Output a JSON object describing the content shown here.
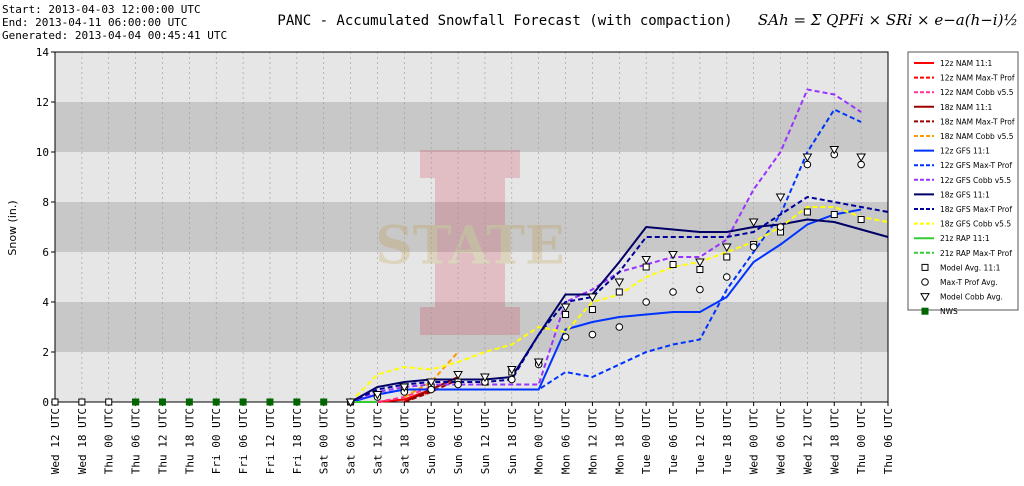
{
  "chart_data": {
    "type": "line",
    "title": "PANC - Accumulated Snowfall Forecast (with compaction)",
    "info": [
      "Start: 2013-04-03 12:00:00 UTC",
      "End: 2013-04-11 06:00:00 UTC",
      "Generated: 2013-04-04 00:45:41 UTC"
    ],
    "formula": "SAh = Σ QPFi × SRi × e−a(h−i)½",
    "watermark": "STATE",
    "y_label": "Snow (in.)",
    "ylim": [
      0,
      14
    ],
    "yticks": [
      0,
      2,
      4,
      6,
      8,
      10,
      12,
      14
    ],
    "grid": true,
    "bands": [
      [
        2,
        4
      ],
      [
        6,
        8
      ],
      [
        10,
        12
      ]
    ],
    "legend": "right",
    "categories": [
      "Wed 12 UTC",
      "Wed 18 UTC",
      "Thu 00 UTC",
      "Thu 06 UTC",
      "Thu 12 UTC",
      "Thu 18 UTC",
      "Fri 00 UTC",
      "Fri 06 UTC",
      "Fri 12 UTC",
      "Fri 18 UTC",
      "Sat 00 UTC",
      "Sat 06 UTC",
      "Sat 12 UTC",
      "Sat 18 UTC",
      "Sun 00 UTC",
      "Sun 06 UTC",
      "Sun 12 UTC",
      "Sun 18 UTC",
      "Mon 00 UTC",
      "Mon 06 UTC",
      "Mon 12 UTC",
      "Mon 18 UTC",
      "Tue 00 UTC",
      "Tue 06 UTC",
      "Tue 12 UTC",
      "Tue 18 UTC",
      "Wed 00 UTC",
      "Wed 06 UTC",
      "Wed 12 UTC",
      "Wed 18 UTC",
      "Thu 00 UTC",
      "Thu 06 UTC"
    ],
    "series": [
      {
        "name": "12z NAM 11:1",
        "color": "#ff0000",
        "style": "solid",
        "values": [
          null,
          null,
          null,
          null,
          null,
          null,
          null,
          null,
          null,
          null,
          null,
          null,
          0,
          0.1,
          0.5,
          null,
          null,
          null,
          null,
          null,
          null,
          null,
          null,
          null,
          null,
          null,
          null,
          null,
          null,
          null,
          null,
          null
        ]
      },
      {
        "name": "12z NAM Max-T Prof",
        "color": "#ff0000",
        "style": "dashed",
        "values": [
          null,
          null,
          null,
          null,
          null,
          null,
          null,
          null,
          null,
          null,
          null,
          null,
          0,
          0.1,
          0.4,
          null,
          null,
          null,
          null,
          null,
          null,
          null,
          null,
          null,
          null,
          null,
          null,
          null,
          null,
          null,
          null,
          null
        ]
      },
      {
        "name": "12z NAM Cobb v5.5",
        "color": "#ff3399",
        "style": "dashed",
        "values": [
          null,
          null,
          null,
          null,
          null,
          null,
          null,
          null,
          null,
          null,
          null,
          null,
          0,
          0.2,
          0.6,
          null,
          null,
          null,
          null,
          null,
          null,
          null,
          null,
          null,
          null,
          null,
          null,
          null,
          null,
          null,
          null,
          null
        ]
      },
      {
        "name": "18z NAM 11:1",
        "color": "#990000",
        "style": "solid",
        "values": [
          null,
          null,
          null,
          null,
          null,
          null,
          null,
          null,
          null,
          null,
          null,
          null,
          null,
          0,
          0.5,
          1.0,
          null,
          null,
          null,
          null,
          null,
          null,
          null,
          null,
          null,
          null,
          null,
          null,
          null,
          null,
          null,
          null
        ]
      },
      {
        "name": "18z NAM Max-T Prof",
        "color": "#990000",
        "style": "dashed",
        "values": [
          null,
          null,
          null,
          null,
          null,
          null,
          null,
          null,
          null,
          null,
          null,
          null,
          null,
          0,
          0.4,
          0.9,
          null,
          null,
          null,
          null,
          null,
          null,
          null,
          null,
          null,
          null,
          null,
          null,
          null,
          null,
          null,
          null
        ]
      },
      {
        "name": "18z NAM Cobb v5.5",
        "color": "#ff9900",
        "style": "dashed",
        "values": [
          null,
          null,
          null,
          null,
          null,
          null,
          null,
          null,
          null,
          null,
          null,
          null,
          null,
          0.2,
          0.8,
          2.0,
          null,
          null,
          null,
          null,
          null,
          null,
          null,
          null,
          null,
          null,
          null,
          null,
          null,
          null,
          null,
          null
        ]
      },
      {
        "name": "12z GFS 11:1",
        "color": "#0033ff",
        "style": "solid",
        "values": [
          null,
          null,
          null,
          null,
          null,
          null,
          null,
          null,
          null,
          null,
          null,
          0,
          0.3,
          0.5,
          0.5,
          0.5,
          0.5,
          0.5,
          0.5,
          2.9,
          3.2,
          3.4,
          3.5,
          3.6,
          3.6,
          4.2,
          5.6,
          6.3,
          7.1,
          7.5,
          7.7,
          null
        ]
      },
      {
        "name": "12z GFS Max-T Prof",
        "color": "#0033ff",
        "style": "dashed",
        "values": [
          null,
          null,
          null,
          null,
          null,
          null,
          null,
          null,
          null,
          null,
          null,
          0,
          0.3,
          0.5,
          0.5,
          0.5,
          0.5,
          0.5,
          0.5,
          1.2,
          1.0,
          1.5,
          2.0,
          2.3,
          2.5,
          4.5,
          6.0,
          7.5,
          10.0,
          11.7,
          11.2,
          null
        ]
      },
      {
        "name": "12z GFS Cobb v5.5",
        "color": "#9933ff",
        "style": "dashed",
        "values": [
          null,
          null,
          null,
          null,
          null,
          null,
          null,
          null,
          null,
          null,
          null,
          0,
          0.4,
          0.6,
          0.7,
          0.7,
          0.7,
          0.7,
          0.7,
          4.0,
          4.5,
          5.2,
          5.5,
          5.8,
          5.8,
          6.5,
          8.5,
          10.0,
          12.5,
          12.3,
          11.6,
          null
        ]
      },
      {
        "name": "18z GFS 11:1",
        "color": "#000066",
        "style": "solid",
        "values": [
          null,
          null,
          null,
          null,
          null,
          null,
          null,
          null,
          null,
          null,
          null,
          0,
          0.6,
          0.8,
          0.9,
          0.9,
          0.9,
          1.0,
          2.7,
          4.3,
          4.3,
          5.6,
          7.0,
          6.9,
          6.8,
          6.8,
          7.0,
          7.1,
          7.3,
          7.2,
          6.9,
          6.6
        ]
      },
      {
        "name": "18z GFS Max-T Prof",
        "color": "#000099",
        "style": "dashed",
        "values": [
          null,
          null,
          null,
          null,
          null,
          null,
          null,
          null,
          null,
          null,
          null,
          0,
          0.5,
          0.7,
          0.8,
          0.8,
          0.8,
          0.9,
          2.7,
          4.0,
          4.2,
          5.2,
          6.6,
          6.6,
          6.6,
          6.6,
          6.8,
          7.5,
          8.2,
          8.0,
          7.8,
          7.6
        ]
      },
      {
        "name": "18z GFS Cobb v5.5",
        "color": "#ffff00",
        "style": "dashed",
        "values": [
          null,
          null,
          null,
          null,
          null,
          null,
          null,
          null,
          null,
          null,
          null,
          0,
          1.1,
          1.4,
          1.3,
          1.6,
          2.0,
          2.3,
          3.0,
          2.8,
          4.0,
          4.3,
          5.0,
          5.4,
          5.6,
          6.0,
          6.4,
          7.0,
          7.8,
          7.8,
          7.4,
          7.2
        ]
      },
      {
        "name": "21z RAP 11:1",
        "color": "#33cc33",
        "style": "solid",
        "values": [
          null,
          null,
          null,
          null,
          null,
          null,
          null,
          null,
          null,
          null,
          null,
          0,
          0,
          null,
          null,
          null,
          null,
          null,
          null,
          null,
          null,
          null,
          null,
          null,
          null,
          null,
          null,
          null,
          null,
          null,
          null,
          null
        ]
      },
      {
        "name": "21z RAP Max-T Prof",
        "color": "#33cc33",
        "style": "dashed",
        "values": [
          null,
          null,
          null,
          null,
          null,
          null,
          null,
          null,
          null,
          null,
          null,
          0,
          0,
          null,
          null,
          null,
          null,
          null,
          null,
          null,
          null,
          null,
          null,
          null,
          null,
          null,
          null,
          null,
          null,
          null,
          null,
          null
        ]
      },
      {
        "name": "Model Avg. 11:1",
        "color": "#000000",
        "marker": "square",
        "values": [
          0,
          0,
          0,
          0,
          null,
          null,
          null,
          null,
          null,
          null,
          null,
          0,
          0.3,
          0.5,
          0.6,
          0.8,
          0.8,
          1.2,
          1.6,
          3.5,
          3.7,
          4.4,
          5.4,
          5.5,
          5.3,
          5.8,
          6.3,
          6.8,
          7.6,
          7.5,
          7.3,
          null
        ]
      },
      {
        "name": "Max-T Prof Avg.",
        "color": "#000000",
        "marker": "circle",
        "values": [
          null,
          null,
          null,
          null,
          null,
          null,
          null,
          null,
          null,
          null,
          null,
          0,
          0.2,
          0.4,
          0.5,
          0.7,
          0.8,
          0.9,
          1.5,
          2.6,
          2.7,
          3.0,
          4.0,
          4.4,
          4.5,
          5.0,
          6.2,
          7.0,
          9.5,
          9.9,
          9.5,
          null
        ]
      },
      {
        "name": "Model Cobb Avg.",
        "color": "#000000",
        "marker": "triangle",
        "values": [
          null,
          null,
          null,
          null,
          null,
          null,
          null,
          null,
          null,
          null,
          null,
          0,
          0.3,
          0.6,
          0.8,
          1.1,
          1.0,
          1.3,
          1.6,
          3.8,
          4.2,
          4.8,
          5.7,
          5.9,
          5.6,
          6.2,
          7.2,
          8.2,
          9.8,
          10.1,
          9.8,
          null
        ]
      },
      {
        "name": "NWS",
        "color": "#006600",
        "marker": "filled-square",
        "values": [
          null,
          null,
          null,
          0,
          0,
          0,
          0,
          0,
          0,
          0,
          0,
          null,
          null,
          null,
          null,
          null,
          null,
          null,
          null,
          null,
          null,
          null,
          null,
          null,
          null,
          null,
          null,
          null,
          null,
          null,
          null,
          null
        ]
      }
    ]
  }
}
